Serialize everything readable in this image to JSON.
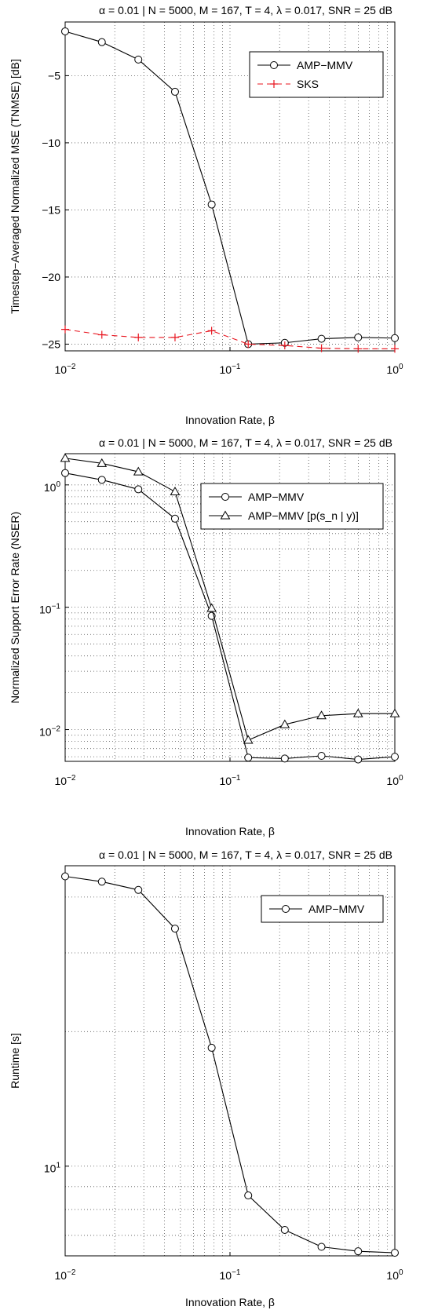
{
  "chart_data": [
    {
      "type": "line",
      "title": "α = 0.01  |  N = 5000, M = 167, T = 4, λ = 0.017, SNR = 25 dB",
      "xlabel": "Innovation Rate, β",
      "ylabel": "Timestep−Averaged Normalized MSE (TNMSE) [dB]",
      "xscale": "log",
      "xlim": [
        0.01,
        1
      ],
      "ylim": [
        -25.5,
        -1
      ],
      "yscale": "linear",
      "x_ticks": [
        {
          "v": 0.01,
          "base": "10",
          "exp": "−2"
        },
        {
          "v": 0.1,
          "base": "10",
          "exp": "−1"
        },
        {
          "v": 1,
          "base": "10",
          "exp": "0"
        }
      ],
      "y_ticks": [
        {
          "v": -5,
          "label": "−5"
        },
        {
          "v": -10,
          "label": "−10"
        },
        {
          "v": -15,
          "label": "−15"
        },
        {
          "v": -20,
          "label": "−20"
        },
        {
          "v": -25,
          "label": "−25"
        }
      ],
      "grid": true,
      "legend_position": "top-right",
      "series": [
        {
          "name": "AMP−MMV",
          "color": "#000000",
          "marker": "circle",
          "dash": "solid",
          "x": [
            0.01,
            0.0167,
            0.0278,
            0.0464,
            0.0774,
            0.129,
            0.215,
            0.359,
            0.599,
            1.0
          ],
          "y": [
            -1.7,
            -2.5,
            -3.8,
            -6.2,
            -14.6,
            -25.0,
            -24.9,
            -24.6,
            -24.5,
            -24.55
          ]
        },
        {
          "name": "SKS",
          "color": "#e8141e",
          "marker": "plus",
          "dash": "dashed",
          "x": [
            0.01,
            0.0167,
            0.0278,
            0.0464,
            0.0774,
            0.129,
            0.215,
            0.359,
            0.599,
            1.0
          ],
          "y": [
            -23.9,
            -24.3,
            -24.5,
            -24.5,
            -24.0,
            -25.0,
            -25.1,
            -25.3,
            -25.35,
            -25.35
          ]
        }
      ]
    },
    {
      "type": "line",
      "title": "α = 0.01  |  N = 5000, M = 167, T = 4, λ = 0.017, SNR = 25 dB",
      "xlabel": "Innovation Rate, β",
      "ylabel": "Normalized Support Error Rate (NSER)",
      "xscale": "log",
      "xlim": [
        0.01,
        1
      ],
      "yscale": "log",
      "ylim": [
        0.0055,
        1.8
      ],
      "x_ticks": [
        {
          "v": 0.01,
          "base": "10",
          "exp": "−2"
        },
        {
          "v": 0.1,
          "base": "10",
          "exp": "−1"
        },
        {
          "v": 1,
          "base": "10",
          "exp": "0"
        }
      ],
      "y_ticks": [
        {
          "v": 1,
          "base": "10",
          "exp": "0"
        },
        {
          "v": 0.1,
          "base": "10",
          "exp": "−1"
        },
        {
          "v": 0.01,
          "base": "10",
          "exp": "−2"
        }
      ],
      "grid": true,
      "legend_position": "top-right",
      "series": [
        {
          "name": "AMP−MMV",
          "color": "#000000",
          "marker": "circle",
          "dash": "solid",
          "x": [
            0.01,
            0.0167,
            0.0278,
            0.0464,
            0.0774,
            0.129,
            0.215,
            0.359,
            0.599,
            1.0
          ],
          "y": [
            1.25,
            1.1,
            0.92,
            0.53,
            0.085,
            0.0059,
            0.0058,
            0.0061,
            0.0057,
            0.006
          ]
        },
        {
          "name": "AMP−MMV [p(s_n | y)]",
          "color": "#000000",
          "marker": "triangle",
          "dash": "solid",
          "x": [
            0.01,
            0.0167,
            0.0278,
            0.0464,
            0.0774,
            0.129,
            0.215,
            0.359,
            0.599,
            1.0
          ],
          "y": [
            1.65,
            1.5,
            1.28,
            0.88,
            0.098,
            0.0082,
            0.011,
            0.013,
            0.0135,
            0.0135
          ]
        }
      ]
    },
    {
      "type": "line",
      "title": "α = 0.01  |  N = 5000, M = 167, T = 4, λ = 0.017, SNR = 25 dB",
      "xlabel": "Innovation Rate, β",
      "ylabel": "Runtime [s]",
      "xscale": "log",
      "xlim": [
        0.01,
        1
      ],
      "yscale": "log",
      "ylim": [
        6.3,
        47
      ],
      "x_ticks": [
        {
          "v": 0.01,
          "base": "10",
          "exp": "−2"
        },
        {
          "v": 0.1,
          "base": "10",
          "exp": "−1"
        },
        {
          "v": 1,
          "base": "10",
          "exp": "0"
        }
      ],
      "y_ticks": [
        {
          "v": 10,
          "base": "10",
          "exp": "1"
        }
      ],
      "grid": true,
      "legend_position": "top-right",
      "series": [
        {
          "name": "AMP−MMV",
          "color": "#000000",
          "marker": "circle",
          "dash": "solid",
          "x": [
            0.01,
            0.0167,
            0.0278,
            0.0464,
            0.0774,
            0.129,
            0.215,
            0.359,
            0.599,
            1.0
          ],
          "y": [
            44.5,
            43.3,
            41.5,
            34.0,
            18.4,
            8.6,
            7.2,
            6.6,
            6.45,
            6.4
          ]
        }
      ]
    }
  ]
}
